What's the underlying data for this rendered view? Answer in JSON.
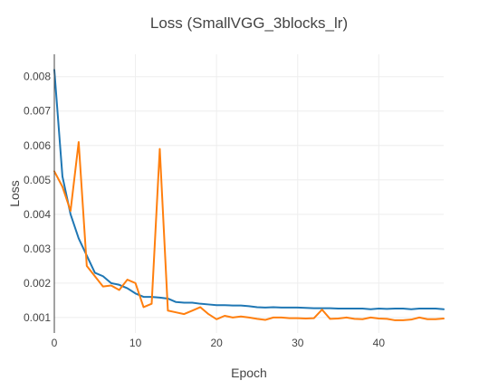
{
  "chart_data": {
    "type": "line",
    "title": "Loss (SmallVGG_3blocks_lr)",
    "xlabel": "Epoch",
    "ylabel": "Loss",
    "xlim": [
      0,
      48
    ],
    "ylim": [
      0.00055,
      0.00865
    ],
    "x_ticks": [
      0,
      10,
      20,
      30,
      40
    ],
    "y_ticks": [
      0.001,
      0.002,
      0.003,
      0.004,
      0.005,
      0.006,
      0.007,
      0.008
    ],
    "x_tick_labels": [
      "0",
      "10",
      "20",
      "30",
      "40"
    ],
    "y_tick_labels": [
      "0.001",
      "0.002",
      "0.003",
      "0.004",
      "0.005",
      "0.006",
      "0.007",
      "0.008"
    ],
    "grid": true,
    "legend": "none",
    "x": [
      0,
      1,
      2,
      3,
      4,
      5,
      6,
      7,
      8,
      9,
      10,
      11,
      12,
      13,
      14,
      15,
      16,
      17,
      18,
      19,
      20,
      21,
      22,
      23,
      24,
      25,
      26,
      27,
      28,
      29,
      30,
      31,
      32,
      33,
      34,
      35,
      36,
      37,
      38,
      39,
      40,
      41,
      42,
      43,
      44,
      45,
      46,
      47,
      48
    ],
    "series": [
      {
        "color": "#1f77b4",
        "values": [
          0.0082,
          0.0051,
          0.004,
          0.0033,
          0.0028,
          0.0023,
          0.0022,
          0.002,
          0.00195,
          0.00185,
          0.0017,
          0.0016,
          0.0016,
          0.00158,
          0.00155,
          0.00145,
          0.00143,
          0.00143,
          0.0014,
          0.00138,
          0.00136,
          0.00136,
          0.00135,
          0.00135,
          0.00133,
          0.0013,
          0.00129,
          0.0013,
          0.00129,
          0.00129,
          0.00129,
          0.00128,
          0.00127,
          0.00127,
          0.00127,
          0.00126,
          0.00126,
          0.00126,
          0.00126,
          0.00124,
          0.00126,
          0.00125,
          0.00126,
          0.00126,
          0.00124,
          0.00126,
          0.00126,
          0.00126,
          0.00124
        ]
      },
      {
        "color": "#ff7f0e",
        "values": [
          0.00525,
          0.0048,
          0.0041,
          0.0061,
          0.0025,
          0.0022,
          0.0019,
          0.00193,
          0.0018,
          0.0021,
          0.002,
          0.0013,
          0.0014,
          0.0059,
          0.0012,
          0.00115,
          0.0011,
          0.0012,
          0.0013,
          0.0011,
          0.00095,
          0.00105,
          0.001,
          0.00103,
          0.001,
          0.00096,
          0.00093,
          0.001,
          0.001,
          0.00098,
          0.00098,
          0.00097,
          0.00098,
          0.00123,
          0.00096,
          0.00097,
          0.001,
          0.00096,
          0.00095,
          0.001,
          0.00097,
          0.00096,
          0.00092,
          0.00092,
          0.00094,
          0.001,
          0.00095,
          0.00095,
          0.00097
        ]
      }
    ]
  }
}
